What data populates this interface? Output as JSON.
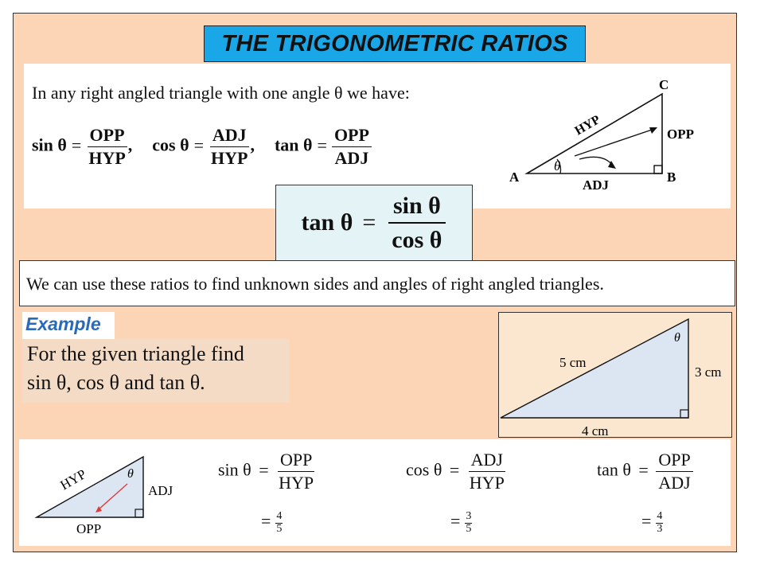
{
  "title": "THE TRIGONOMETRIC RATIOS",
  "intro": {
    "text": "In any right angled triangle with one angle θ we have:",
    "sin": {
      "fn": "sin θ",
      "eq": "=",
      "num": "OPP",
      "den": "HYP",
      "sep": ","
    },
    "cos": {
      "fn": "cos θ",
      "eq": "=",
      "num": "ADJ",
      "den": "HYP",
      "sep": ","
    },
    "tan": {
      "fn": "tan θ",
      "eq": "=",
      "num": "OPP",
      "den": "ADJ"
    }
  },
  "triangle1": {
    "vertex_a": "A",
    "vertex_b": "B",
    "vertex_c": "C",
    "hyp": "HYP",
    "opp": "OPP",
    "adj": "ADJ",
    "angle": "θ"
  },
  "identity": {
    "lhs": "tan θ",
    "eq": "=",
    "num": "sin θ",
    "den": "cos θ"
  },
  "usage": "We can use these ratios to find unknown sides and angles of right angled triangles.",
  "example": {
    "label": "Example",
    "line1": "For the given triangle find",
    "line2": "sin θ, cos θ and tan θ."
  },
  "triangle2": {
    "hyp": "5 cm",
    "side": "3 cm",
    "base": "4 cm",
    "angle": "θ"
  },
  "triangle3": {
    "hyp": "HYP",
    "adj": "ADJ",
    "opp": "OPP",
    "angle": "θ"
  },
  "results": [
    {
      "fn": "sin θ",
      "eq": "=",
      "num": "OPP",
      "den": "HYP",
      "eq2": "=",
      "val_num": "4",
      "val_den": "5"
    },
    {
      "fn": "cos θ",
      "eq": "=",
      "num": "ADJ",
      "den": "HYP",
      "eq2": "=",
      "val_num": "3",
      "val_den": "5"
    },
    {
      "fn": "tan θ",
      "eq": "=",
      "num": "OPP",
      "den": "ADJ",
      "eq2": "=",
      "val_num": "4",
      "val_den": "3"
    }
  ],
  "colors": {
    "slide_bg": "#fbd5b5",
    "title_bg": "#1aa7e8",
    "identity_bg": "#e4f4f6",
    "example_label": "#2a6ab8",
    "triangle_fill": "#dce6f2",
    "arrow": "#e03a3a"
  }
}
